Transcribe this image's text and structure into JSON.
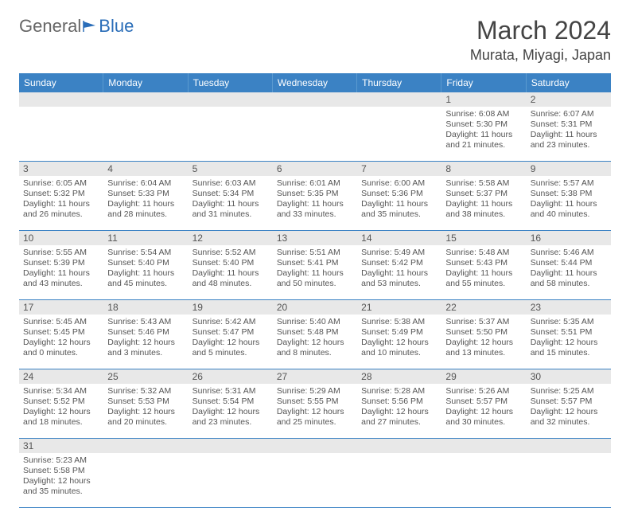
{
  "logo": {
    "part1": "General",
    "part2": "Blue"
  },
  "title": "March 2024",
  "location": "Murata, Miyagi, Japan",
  "colors": {
    "header_bg": "#3b82c4",
    "header_text": "#ffffff",
    "daynum_bg": "#e8e8e8",
    "border": "#3b82c4",
    "logo_gray": "#666666",
    "logo_blue": "#2a6db8",
    "text": "#555555"
  },
  "dayNames": [
    "Sunday",
    "Monday",
    "Tuesday",
    "Wednesday",
    "Thursday",
    "Friday",
    "Saturday"
  ],
  "weeks": [
    {
      "nums": [
        "",
        "",
        "",
        "",
        "",
        "1",
        "2"
      ],
      "cells": [
        null,
        null,
        null,
        null,
        null,
        {
          "sunrise": "Sunrise: 6:08 AM",
          "sunset": "Sunset: 5:30 PM",
          "daylight": "Daylight: 11 hours and 21 minutes."
        },
        {
          "sunrise": "Sunrise: 6:07 AM",
          "sunset": "Sunset: 5:31 PM",
          "daylight": "Daylight: 11 hours and 23 minutes."
        }
      ]
    },
    {
      "nums": [
        "3",
        "4",
        "5",
        "6",
        "7",
        "8",
        "9"
      ],
      "cells": [
        {
          "sunrise": "Sunrise: 6:05 AM",
          "sunset": "Sunset: 5:32 PM",
          "daylight": "Daylight: 11 hours and 26 minutes."
        },
        {
          "sunrise": "Sunrise: 6:04 AM",
          "sunset": "Sunset: 5:33 PM",
          "daylight": "Daylight: 11 hours and 28 minutes."
        },
        {
          "sunrise": "Sunrise: 6:03 AM",
          "sunset": "Sunset: 5:34 PM",
          "daylight": "Daylight: 11 hours and 31 minutes."
        },
        {
          "sunrise": "Sunrise: 6:01 AM",
          "sunset": "Sunset: 5:35 PM",
          "daylight": "Daylight: 11 hours and 33 minutes."
        },
        {
          "sunrise": "Sunrise: 6:00 AM",
          "sunset": "Sunset: 5:36 PM",
          "daylight": "Daylight: 11 hours and 35 minutes."
        },
        {
          "sunrise": "Sunrise: 5:58 AM",
          "sunset": "Sunset: 5:37 PM",
          "daylight": "Daylight: 11 hours and 38 minutes."
        },
        {
          "sunrise": "Sunrise: 5:57 AM",
          "sunset": "Sunset: 5:38 PM",
          "daylight": "Daylight: 11 hours and 40 minutes."
        }
      ]
    },
    {
      "nums": [
        "10",
        "11",
        "12",
        "13",
        "14",
        "15",
        "16"
      ],
      "cells": [
        {
          "sunrise": "Sunrise: 5:55 AM",
          "sunset": "Sunset: 5:39 PM",
          "daylight": "Daylight: 11 hours and 43 minutes."
        },
        {
          "sunrise": "Sunrise: 5:54 AM",
          "sunset": "Sunset: 5:40 PM",
          "daylight": "Daylight: 11 hours and 45 minutes."
        },
        {
          "sunrise": "Sunrise: 5:52 AM",
          "sunset": "Sunset: 5:40 PM",
          "daylight": "Daylight: 11 hours and 48 minutes."
        },
        {
          "sunrise": "Sunrise: 5:51 AM",
          "sunset": "Sunset: 5:41 PM",
          "daylight": "Daylight: 11 hours and 50 minutes."
        },
        {
          "sunrise": "Sunrise: 5:49 AM",
          "sunset": "Sunset: 5:42 PM",
          "daylight": "Daylight: 11 hours and 53 minutes."
        },
        {
          "sunrise": "Sunrise: 5:48 AM",
          "sunset": "Sunset: 5:43 PM",
          "daylight": "Daylight: 11 hours and 55 minutes."
        },
        {
          "sunrise": "Sunrise: 5:46 AM",
          "sunset": "Sunset: 5:44 PM",
          "daylight": "Daylight: 11 hours and 58 minutes."
        }
      ]
    },
    {
      "nums": [
        "17",
        "18",
        "19",
        "20",
        "21",
        "22",
        "23"
      ],
      "cells": [
        {
          "sunrise": "Sunrise: 5:45 AM",
          "sunset": "Sunset: 5:45 PM",
          "daylight": "Daylight: 12 hours and 0 minutes."
        },
        {
          "sunrise": "Sunrise: 5:43 AM",
          "sunset": "Sunset: 5:46 PM",
          "daylight": "Daylight: 12 hours and 3 minutes."
        },
        {
          "sunrise": "Sunrise: 5:42 AM",
          "sunset": "Sunset: 5:47 PM",
          "daylight": "Daylight: 12 hours and 5 minutes."
        },
        {
          "sunrise": "Sunrise: 5:40 AM",
          "sunset": "Sunset: 5:48 PM",
          "daylight": "Daylight: 12 hours and 8 minutes."
        },
        {
          "sunrise": "Sunrise: 5:38 AM",
          "sunset": "Sunset: 5:49 PM",
          "daylight": "Daylight: 12 hours and 10 minutes."
        },
        {
          "sunrise": "Sunrise: 5:37 AM",
          "sunset": "Sunset: 5:50 PM",
          "daylight": "Daylight: 12 hours and 13 minutes."
        },
        {
          "sunrise": "Sunrise: 5:35 AM",
          "sunset": "Sunset: 5:51 PM",
          "daylight": "Daylight: 12 hours and 15 minutes."
        }
      ]
    },
    {
      "nums": [
        "24",
        "25",
        "26",
        "27",
        "28",
        "29",
        "30"
      ],
      "cells": [
        {
          "sunrise": "Sunrise: 5:34 AM",
          "sunset": "Sunset: 5:52 PM",
          "daylight": "Daylight: 12 hours and 18 minutes."
        },
        {
          "sunrise": "Sunrise: 5:32 AM",
          "sunset": "Sunset: 5:53 PM",
          "daylight": "Daylight: 12 hours and 20 minutes."
        },
        {
          "sunrise": "Sunrise: 5:31 AM",
          "sunset": "Sunset: 5:54 PM",
          "daylight": "Daylight: 12 hours and 23 minutes."
        },
        {
          "sunrise": "Sunrise: 5:29 AM",
          "sunset": "Sunset: 5:55 PM",
          "daylight": "Daylight: 12 hours and 25 minutes."
        },
        {
          "sunrise": "Sunrise: 5:28 AM",
          "sunset": "Sunset: 5:56 PM",
          "daylight": "Daylight: 12 hours and 27 minutes."
        },
        {
          "sunrise": "Sunrise: 5:26 AM",
          "sunset": "Sunset: 5:57 PM",
          "daylight": "Daylight: 12 hours and 30 minutes."
        },
        {
          "sunrise": "Sunrise: 5:25 AM",
          "sunset": "Sunset: 5:57 PM",
          "daylight": "Daylight: 12 hours and 32 minutes."
        }
      ]
    },
    {
      "nums": [
        "31",
        "",
        "",
        "",
        "",
        "",
        ""
      ],
      "cells": [
        {
          "sunrise": "Sunrise: 5:23 AM",
          "sunset": "Sunset: 5:58 PM",
          "daylight": "Daylight: 12 hours and 35 minutes."
        },
        null,
        null,
        null,
        null,
        null,
        null
      ]
    }
  ]
}
